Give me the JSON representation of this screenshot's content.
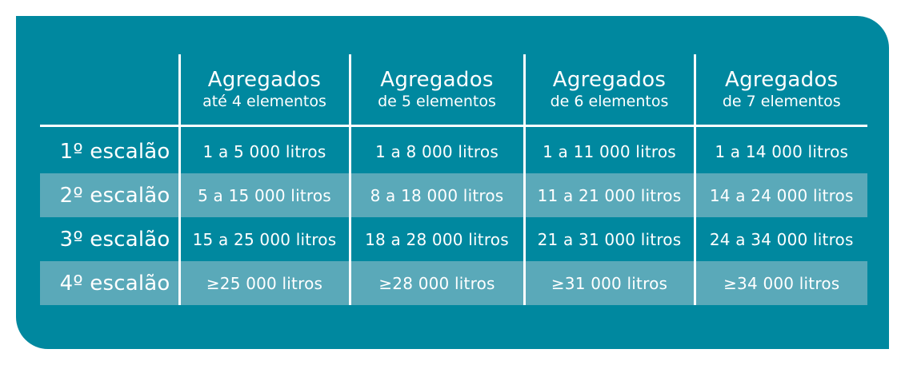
{
  "columns": [
    {
      "title": "Agregados",
      "subtitle": "até 4 elementos"
    },
    {
      "title": "Agregados",
      "subtitle": "de 5 elementos"
    },
    {
      "title": "Agregados",
      "subtitle": "de 6 elementos"
    },
    {
      "title": "Agregados",
      "subtitle": "de 7 elementos"
    }
  ],
  "rows": [
    {
      "label": "1º escalão",
      "cells": [
        "1 a 5 000 litros",
        "1 a 8 000 litros",
        "1 a 11 000 litros",
        "1 a 14 000 litros"
      ]
    },
    {
      "label": "2º escalão",
      "cells": [
        "5 a 15 000 litros",
        "8 a 18 000 litros",
        "11 a 21 000 litros",
        "14 a 24 000 litros"
      ]
    },
    {
      "label": "3º escalão",
      "cells": [
        "15 a 25 000 litros",
        "18 a 28 000 litros",
        "21 a 31 000 litros",
        "24 a 34 000 litros"
      ]
    },
    {
      "label": "4º escalão",
      "cells": [
        "≥25 000 litros",
        "≥28 000 litros",
        "≥31 000 litros",
        "≥34 000 litros"
      ]
    }
  ],
  "colors": {
    "panel": "#00889f",
    "band": "#5aa9b9",
    "text": "#ffffff",
    "rules": "#ffffff"
  }
}
